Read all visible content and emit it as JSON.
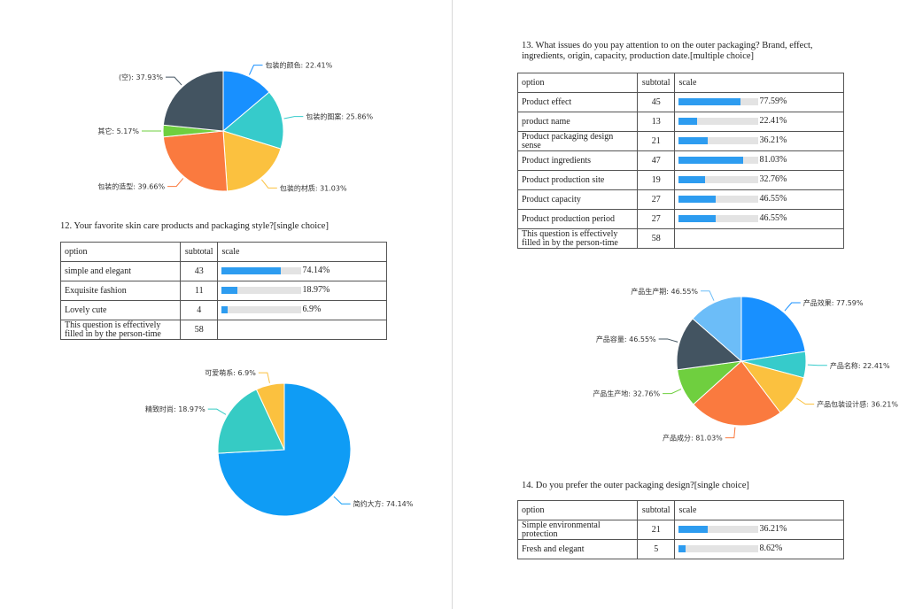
{
  "colors": {
    "bar": "#2d9cf0",
    "track": "#e3e3e3"
  },
  "pie_top": {
    "slices": [
      {
        "label": "包装的颜色: 22.41%",
        "value": 22.41,
        "color": "#1890ff"
      },
      {
        "label": "包装的图案: 25.86%",
        "value": 25.86,
        "color": "#36cbcb"
      },
      {
        "label": "包装的材质: 31.03%",
        "value": 31.03,
        "color": "#fbc13f"
      },
      {
        "label": "包装的造型: 39.66%",
        "value": 39.66,
        "color": "#fa7a3f"
      },
      {
        "label": "其它: 5.17%",
        "value": 5.17,
        "color": "#6fcf3f"
      },
      {
        "label": "(空): 37.93%",
        "value": 37.93,
        "color": "#435461"
      }
    ]
  },
  "q12": {
    "title": "12. Your favorite skin care products and packaging style?[single choice]",
    "headers": [
      "option",
      "subtotal",
      "scale"
    ],
    "rows": [
      {
        "option": "simple and elegant",
        "subtotal": "43",
        "pct": "74.14%",
        "value": 74.14
      },
      {
        "option": "Exquisite fashion",
        "subtotal": "11",
        "pct": "18.97%",
        "value": 18.97
      },
      {
        "option": "Lovely cute",
        "subtotal": "4",
        "pct": "6.9%",
        "value": 6.9
      }
    ],
    "footer": {
      "option": "This question is effectively filled in by the person-time",
      "subtotal": "58"
    }
  },
  "pie_q12": {
    "slices": [
      {
        "label": "简约大方: 74.14%",
        "value": 74.14,
        "color": "#0f9cf5"
      },
      {
        "label": "精致时尚: 18.97%",
        "value": 18.97,
        "color": "#36cbc4"
      },
      {
        "label": "可爱萌系: 6.9%",
        "value": 6.9,
        "color": "#fbc13f"
      }
    ]
  },
  "q13": {
    "title": "13. What issues do you pay attention to on the outer packaging? Brand, effect, ingredients, origin, capacity, production date.[multiple choice]",
    "headers": [
      "option",
      "subtotal",
      "scale"
    ],
    "rows": [
      {
        "option": "Product effect",
        "subtotal": "45",
        "pct": "77.59%",
        "value": 77.59
      },
      {
        "option": "product name",
        "subtotal": "13",
        "pct": "22.41%",
        "value": 22.41
      },
      {
        "option": "Product packaging design sense",
        "subtotal": "21",
        "pct": "36.21%",
        "value": 36.21
      },
      {
        "option": "Product ingredients",
        "subtotal": "47",
        "pct": "81.03%",
        "value": 81.03
      },
      {
        "option": "Product production site",
        "subtotal": "19",
        "pct": "32.76%",
        "value": 32.76
      },
      {
        "option": "Product capacity",
        "subtotal": "27",
        "pct": "46.55%",
        "value": 46.55
      },
      {
        "option": "Product production period",
        "subtotal": "27",
        "pct": "46.55%",
        "value": 46.55
      }
    ],
    "footer": {
      "option": "This question is effectively filled in by the person-time",
      "subtotal": "58"
    }
  },
  "pie_q13": {
    "slices": [
      {
        "label": "产品效果: 77.59%",
        "value": 77.59,
        "color": "#1890ff"
      },
      {
        "label": "产品名称: 22.41%",
        "value": 22.41,
        "color": "#36cbcb"
      },
      {
        "label": "产品包装设计感: 36.21%",
        "value": 36.21,
        "color": "#fbc13f"
      },
      {
        "label": "产品成分: 81.03%",
        "value": 81.03,
        "color": "#fa7a3f"
      },
      {
        "label": "产品生产地: 32.76%",
        "value": 32.76,
        "color": "#6fcf3f"
      },
      {
        "label": "产品容量: 46.55%",
        "value": 46.55,
        "color": "#435461"
      },
      {
        "label": "产品生产期: 46.55%",
        "value": 46.55,
        "color": "#6cbdf8"
      }
    ]
  },
  "q14": {
    "title": "14. Do you prefer the outer packaging design?[single choice]",
    "headers": [
      "option",
      "subtotal",
      "scale"
    ],
    "rows": [
      {
        "option": "Simple environmental protection",
        "subtotal": "21",
        "pct": "36.21%",
        "value": 36.21
      },
      {
        "option": "Fresh and elegant",
        "subtotal": "5",
        "pct": "8.62%",
        "value": 8.62
      }
    ]
  }
}
